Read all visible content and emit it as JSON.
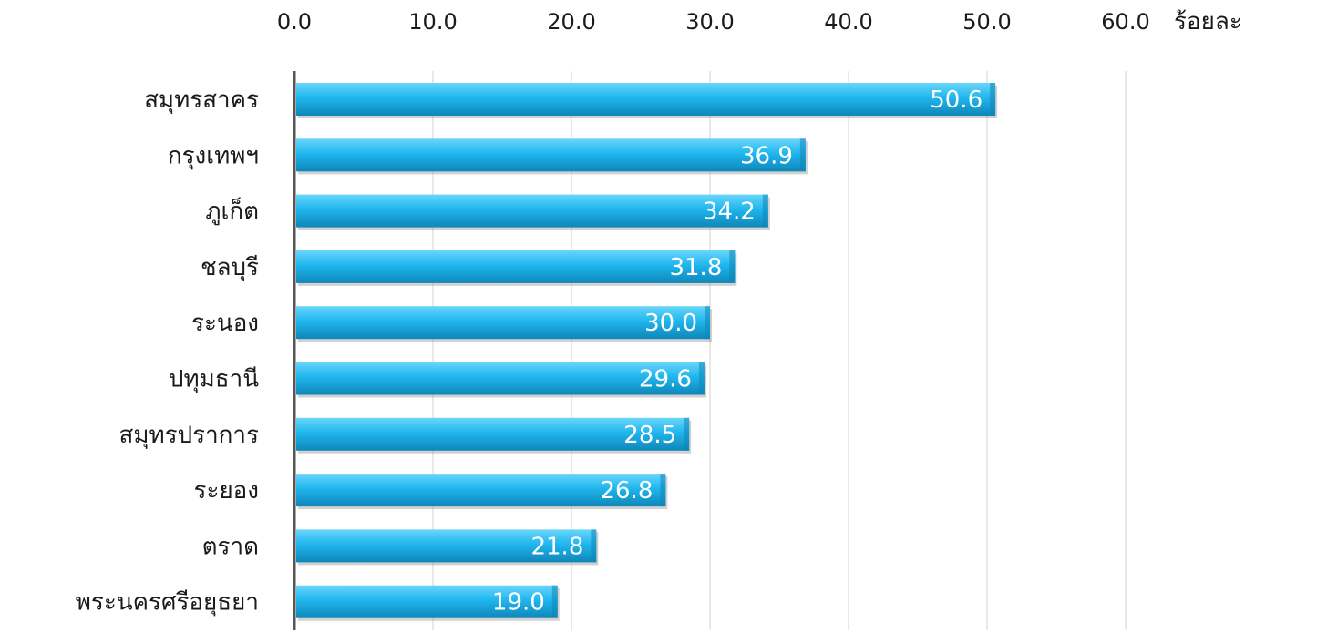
{
  "chart_data": {
    "type": "bar",
    "orientation": "horizontal",
    "categories": [
      "สมุทรสาคร",
      "กรุงเทพฯ",
      "ภูเก็ต",
      "ชลบุรี",
      "ระนอง",
      "ปทุมธานี",
      "สมุทรปราการ",
      "ระยอง",
      "ตราด",
      "พระนครศรีอยุธยา"
    ],
    "values": [
      50.6,
      36.9,
      34.2,
      31.8,
      30.0,
      29.6,
      28.5,
      26.8,
      21.8,
      19.0
    ],
    "value_labels": [
      "50.6",
      "36.9",
      "34.2",
      "31.8",
      "30.0",
      "29.6",
      "28.5",
      "26.8",
      "21.8",
      "19.0"
    ],
    "x_ticks": [
      "0.0",
      "10.0",
      "20.0",
      "30.0",
      "40.0",
      "50.0",
      "60.0"
    ],
    "xlim": [
      0,
      60
    ],
    "unit_label": "ร้อยละ",
    "x_axis_position": "top",
    "grid": true,
    "colors": {
      "bar": "#1fb6ee",
      "bar_highlight": "#6ad6fb",
      "bar_shadow": "#0f86b8",
      "data_label": "#ffffff"
    }
  }
}
